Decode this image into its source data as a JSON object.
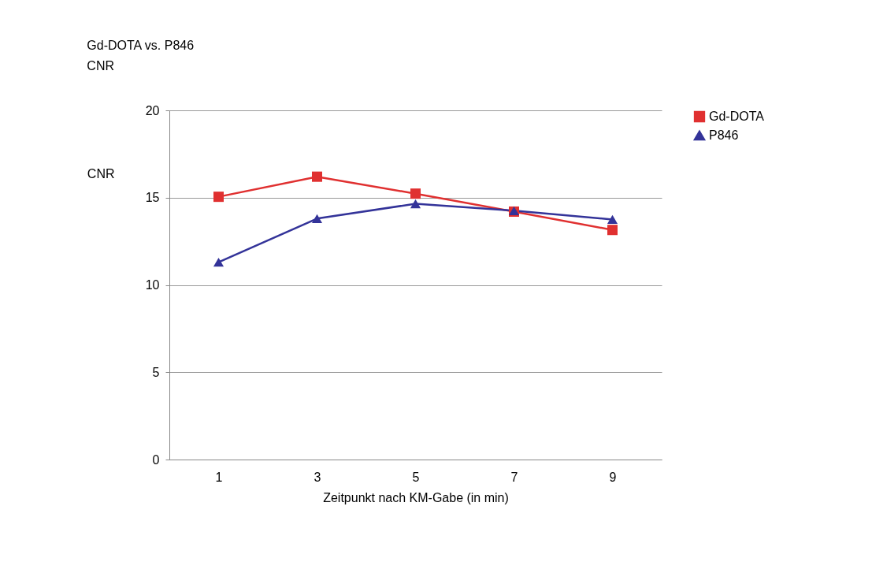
{
  "chart_data": {
    "type": "line",
    "title": "Gd-DOTA vs.  P846",
    "subtitle": "CNR",
    "xlabel": "Zeitpunkt nach KM-Gabe (in min)",
    "ylabel": "CNR",
    "categories": [
      "1",
      "3",
      "5",
      "7",
      "9"
    ],
    "series": [
      {
        "name": "Gd-DOTA",
        "color": "#e03030",
        "marker": "square",
        "values": [
          15.05,
          16.2,
          15.23,
          14.2,
          13.15
        ]
      },
      {
        "name": "P846",
        "color": "#333399",
        "marker": "triangle",
        "values": [
          11.3,
          13.8,
          14.65,
          14.25,
          13.75
        ]
      }
    ],
    "ylim": [
      0,
      20
    ],
    "yticks": [
      0,
      5,
      10,
      15,
      20
    ],
    "grid": "y",
    "legend": "right",
    "line_style": "solid"
  }
}
